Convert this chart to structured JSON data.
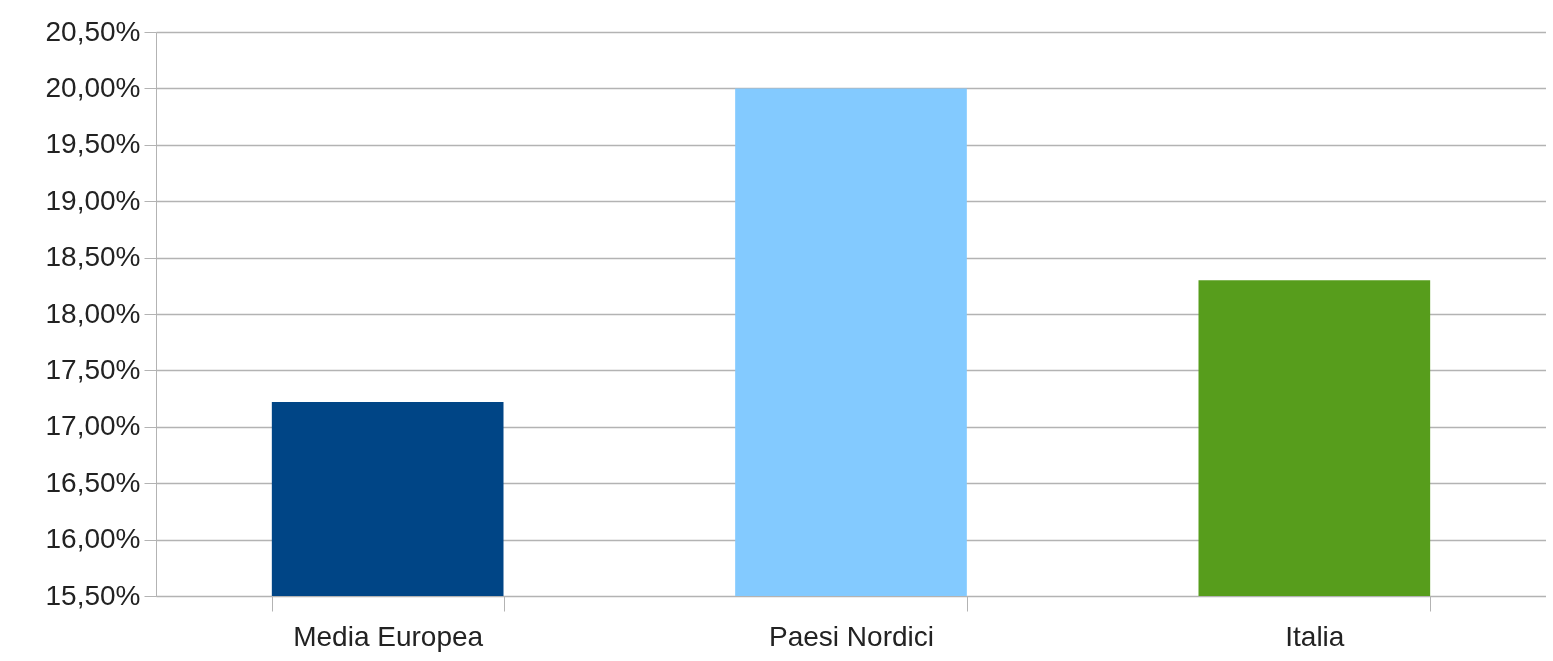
{
  "chart_data": {
    "type": "bar",
    "categories": [
      "Media Europea",
      "Paesi Nordici",
      "Italia"
    ],
    "values": [
      17.22,
      20.0,
      18.3
    ],
    "colors": [
      "#004586",
      "#83caff",
      "#579d1c"
    ],
    "ylim": [
      15.5,
      20.5
    ],
    "yticks": [
      {
        "value": 15.5,
        "label": "15,50%"
      },
      {
        "value": 16,
        "label": "16,00%"
      },
      {
        "value": 16.5,
        "label": "16,50%"
      },
      {
        "value": 17,
        "label": "17,00%"
      },
      {
        "value": 17.5,
        "label": "17,50%"
      },
      {
        "value": 18,
        "label": "18,00%"
      },
      {
        "value": 18.5,
        "label": "18,50%"
      },
      {
        "value": 19,
        "label": "19,00%"
      },
      {
        "value": 19.5,
        "label": "19,50%"
      },
      {
        "value": 20,
        "label": "20,00%"
      },
      {
        "value": 20.5,
        "label": "20,50%"
      }
    ],
    "grid": "y",
    "legend": false
  }
}
